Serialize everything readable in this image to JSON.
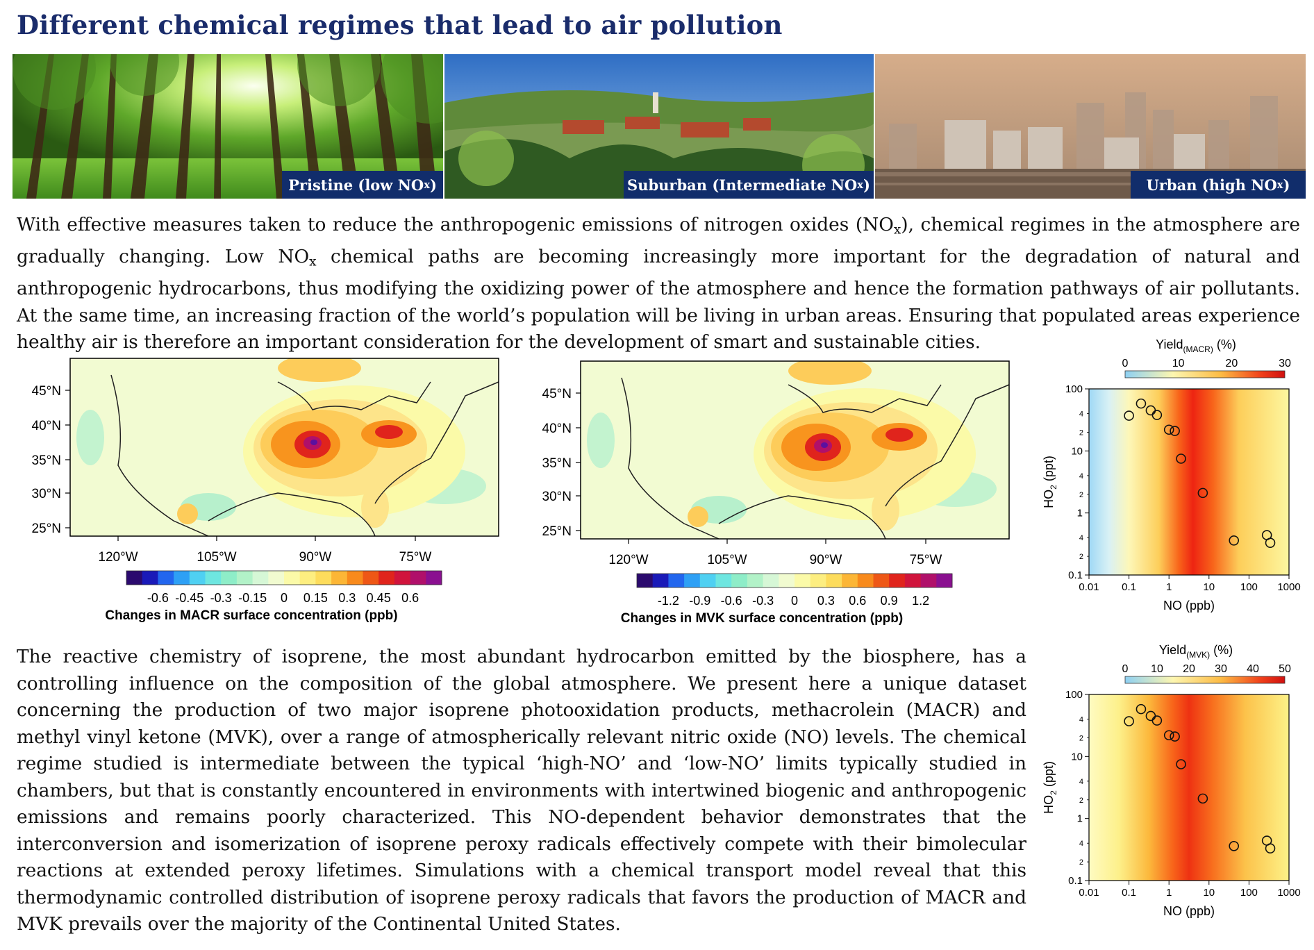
{
  "title": "Different chemical regimes that lead to air pollution",
  "photos": [
    {
      "caption_main": "Pristine (low NO",
      "caption_sub": "x",
      "caption_end": ")"
    },
    {
      "caption_main": "Suburban (Intermediate NO",
      "caption_sub": "x",
      "caption_end": ")"
    },
    {
      "caption_main": "Urban (high NO",
      "caption_sub": "x",
      "caption_end": ")"
    }
  ],
  "intro": {
    "t1": "With effective measures taken to reduce the anthropogenic emissions of nitrogen oxides (NO",
    "t2": "), chemical regimes in the atmosphere are gradually changing. Low NO",
    "t3": " chemical paths are becoming increasingly more important for the degradation of natural and anthropogenic hydrocarbons, thus modifying the oxidizing power of the atmosphere and hence the formation pathways of air pollutants. At the same time, an increasing fraction of the world’s population will be living in urban areas. Ensuring that populated areas experience healthy air is therefore an important consideration for the development of smart and sustainable cities.",
    "sub": "x"
  },
  "body": "The reactive chemistry of isoprene, the most abundant hydrocarbon emitted by the biosphere, has a controlling influence on the composition of the global atmosphere. We present here a unique dataset concerning the production of two major isoprene photooxidation products, methacrolein (MACR) and methyl vinyl ketone (MVK), over a range of atmospherically relevant nitric oxide (NO) levels. The chemical regime studied is intermediate between the typical ‘high-NO’ and ‘low-NO’ limits typically studied in chambers, but that is constantly encountered in environments with intertwined biogenic and anthropogenic emissions and remains poorly characterized. This NO-dependent behavior demonstrates that the interconversion and isomerization of isoprene peroxy radicals effectively compete with their bimolecular reactions at extended peroxy lifetimes. Simulations with a chemical transport model reveal that this thermodynamic controlled distribution of isoprene peroxy radicals that favors the production of MACR and MVK prevails over the majority of the Continental United States.",
  "maps": [
    {
      "lat_labels": [
        "45°N",
        "40°N",
        "35°N",
        "30°N",
        "25°N"
      ],
      "lon_labels": [
        "120°W",
        "105°W",
        "90°W",
        "75°W"
      ],
      "colorbar_ticks": [
        "-0.6",
        "-0.45",
        "-0.3",
        "-0.15",
        "0",
        "0.15",
        "0.3",
        "0.45",
        "0.6"
      ],
      "colorbar_label": "Changes in MACR surface concentration (ppb)"
    },
    {
      "lat_labels": [
        "45°N",
        "40°N",
        "35°N",
        "30°N",
        "25°N"
      ],
      "lon_labels": [
        "120°W",
        "105°W",
        "90°W",
        "75°W"
      ],
      "colorbar_ticks": [
        "-1.2",
        "-0.9",
        "-0.6",
        "-0.3",
        "0",
        "0.3",
        "0.6",
        "0.9",
        "1.2"
      ],
      "colorbar_label": "Changes in MVK surface concentration (ppb)"
    }
  ],
  "colors": {
    "title": "#1a2c6b",
    "caption_bg": "#112d6b",
    "diverging": [
      "#2b0a6e",
      "#1a1ab8",
      "#2266ee",
      "#2ea0f5",
      "#4fd0f2",
      "#6ee6e0",
      "#8eedc8",
      "#b2f2c8",
      "#d6f7d6",
      "#f1fbd0",
      "#fbfaa8",
      "#fdee80",
      "#fddc5c",
      "#fcb636",
      "#f88a1c",
      "#ee5716",
      "#e0241c",
      "#d0143c",
      "#b0106a",
      "#8a1090"
    ]
  },
  "chart_data": [
    {
      "type": "scatter",
      "title_main": "Yield",
      "title_sub": "(MACR)",
      "title_end": " (%)",
      "xlabel": "NO (ppb)",
      "ylabel_main": "HO",
      "ylabel_sub": "2",
      "ylabel_end": " (ppt)",
      "x_scale": "log",
      "y_scale": "log",
      "xlim": [
        0.01,
        1000
      ],
      "ylim": [
        0.1,
        100
      ],
      "x_ticks": [
        "0.01",
        "0.1",
        "1",
        "10",
        "100",
        "1000"
      ],
      "y_ticks": [
        "0.1",
        "1",
        "10",
        "100"
      ],
      "y_minor_labels": [
        "2",
        "4"
      ],
      "colorbar_ticks": [
        "0",
        "10",
        "20",
        "30"
      ],
      "colorbar_range": [
        0,
        30
      ],
      "x": [
        0.1,
        0.2,
        0.35,
        0.5,
        1.0,
        1.4,
        2.0,
        7.0,
        42,
        280,
        340
      ],
      "y": [
        37,
        58,
        45,
        38,
        22,
        21,
        7.5,
        2.1,
        0.36,
        0.44,
        0.33
      ]
    },
    {
      "type": "scatter",
      "title_main": "Yield",
      "title_sub": "(MVK)",
      "title_end": " (%)",
      "xlabel": "NO (ppb)",
      "ylabel_main": "HO",
      "ylabel_sub": "2",
      "ylabel_end": " (ppt)",
      "x_scale": "log",
      "y_scale": "log",
      "xlim": [
        0.01,
        1000
      ],
      "ylim": [
        0.1,
        100
      ],
      "x_ticks": [
        "0.01",
        "0.1",
        "1",
        "10",
        "100",
        "1000"
      ],
      "y_ticks": [
        "0.1",
        "1",
        "10",
        "100"
      ],
      "y_minor_labels": [
        "2",
        "4"
      ],
      "colorbar_ticks": [
        "0",
        "10",
        "20",
        "30",
        "40",
        "50"
      ],
      "colorbar_range": [
        0,
        50
      ],
      "x": [
        0.1,
        0.2,
        0.35,
        0.5,
        1.0,
        1.4,
        2.0,
        7.0,
        42,
        280,
        340
      ],
      "y": [
        37,
        58,
        45,
        38,
        22,
        21,
        7.5,
        2.1,
        0.36,
        0.44,
        0.33
      ]
    }
  ]
}
